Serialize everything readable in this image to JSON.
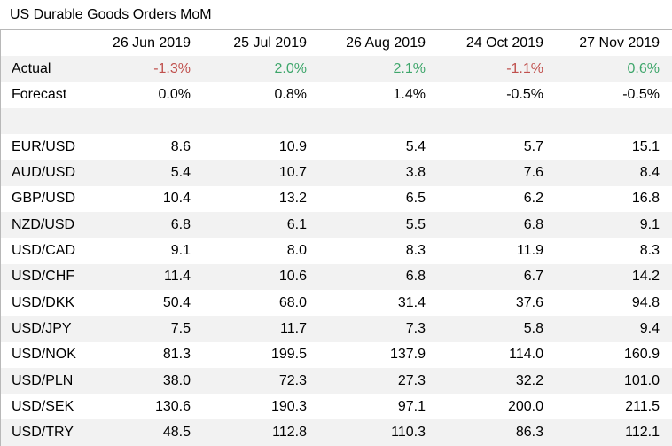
{
  "title": "US Durable Goods Orders MoM",
  "colors": {
    "negative": "#c0504d",
    "positive": "#3ea66b",
    "stripe": "#f2f2f2"
  },
  "dates": [
    "26 Jun 2019",
    "25 Jul 2019",
    "26 Aug 2019",
    "24 Oct 2019",
    "27 Nov 2019"
  ],
  "actual": {
    "label": "Actual",
    "values": [
      "-1.3%",
      "2.0%",
      "2.1%",
      "-1.1%",
      "0.6%"
    ],
    "signs": [
      "neg",
      "pos",
      "pos",
      "neg",
      "pos"
    ]
  },
  "forecast": {
    "label": "Forecast",
    "values": [
      "0.0%",
      "0.8%",
      "1.4%",
      "-0.5%",
      "-0.5%"
    ]
  },
  "pairs": [
    {
      "label": "EUR/USD",
      "values": [
        "8.6",
        "10.9",
        "5.4",
        "5.7",
        "15.1"
      ]
    },
    {
      "label": "AUD/USD",
      "values": [
        "5.4",
        "10.7",
        "3.8",
        "7.6",
        "8.4"
      ]
    },
    {
      "label": "GBP/USD",
      "values": [
        "10.4",
        "13.2",
        "6.5",
        "6.2",
        "16.8"
      ]
    },
    {
      "label": "NZD/USD",
      "values": [
        "6.8",
        "6.1",
        "5.5",
        "6.8",
        "9.1"
      ]
    },
    {
      "label": "USD/CAD",
      "values": [
        "9.1",
        "8.0",
        "8.3",
        "11.9",
        "8.3"
      ]
    },
    {
      "label": "USD/CHF",
      "values": [
        "11.4",
        "10.6",
        "6.8",
        "6.7",
        "14.2"
      ]
    },
    {
      "label": "USD/DKK",
      "values": [
        "50.4",
        "68.0",
        "31.4",
        "37.6",
        "94.8"
      ]
    },
    {
      "label": "USD/JPY",
      "values": [
        "7.5",
        "11.7",
        "7.3",
        "5.8",
        "9.4"
      ]
    },
    {
      "label": "USD/NOK",
      "values": [
        "81.3",
        "199.5",
        "137.9",
        "114.0",
        "160.9"
      ]
    },
    {
      "label": "USD/PLN",
      "values": [
        "38.0",
        "72.3",
        "27.3",
        "32.2",
        "101.0"
      ]
    },
    {
      "label": "USD/SEK",
      "values": [
        "130.6",
        "190.3",
        "97.1",
        "200.0",
        "211.5"
      ]
    },
    {
      "label": "USD/TRY",
      "values": [
        "48.5",
        "112.8",
        "110.3",
        "86.3",
        "112.1"
      ]
    }
  ]
}
